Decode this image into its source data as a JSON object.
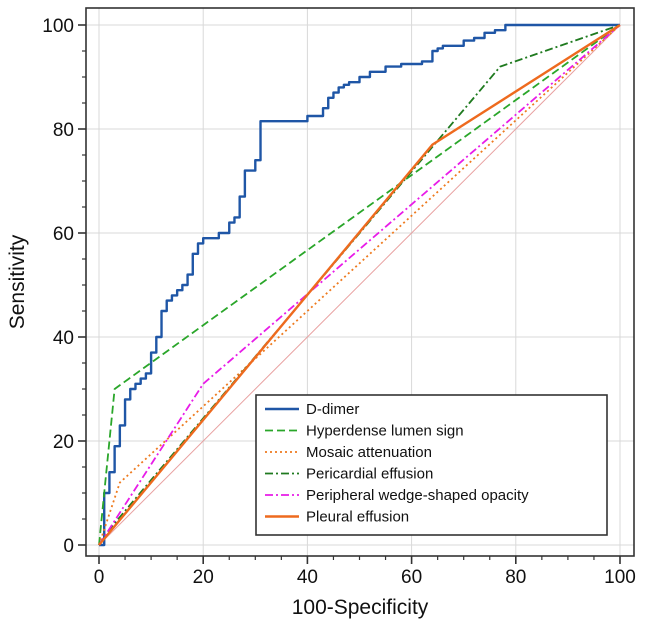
{
  "chart_data": {
    "type": "line",
    "title": "",
    "xlabel": "100-Specificity",
    "ylabel": "Sensitivity",
    "xlim": [
      0,
      100
    ],
    "ylim": [
      0,
      100
    ],
    "x_ticks": [
      0,
      20,
      40,
      60,
      80,
      100
    ],
    "y_ticks": [
      0,
      20,
      40,
      60,
      80,
      100
    ],
    "x_tick_labels": [
      "0",
      "20",
      "40",
      "60",
      "80",
      "100"
    ],
    "y_tick_labels": [
      "0",
      "20",
      "40",
      "60",
      "80",
      "100"
    ],
    "grid": true,
    "legend_position": "bottom-right",
    "reference_line": {
      "x": [
        0,
        100
      ],
      "y": [
        0,
        100
      ],
      "color": "#e8a0a0"
    },
    "series": [
      {
        "name": "D-dimer",
        "color": "#1f56a6",
        "dash": "solid",
        "x": [
          0,
          1,
          1,
          2,
          2,
          3,
          3,
          4,
          4,
          5,
          5,
          6,
          6,
          7,
          7,
          8,
          8,
          9,
          9,
          10,
          10,
          11,
          11,
          12,
          12,
          13,
          13,
          14,
          14,
          15,
          15,
          16,
          16,
          17,
          17,
          18,
          18,
          19,
          19,
          20,
          20,
          23,
          23,
          25,
          25,
          26,
          26,
          27,
          27,
          28,
          28,
          30,
          30,
          31,
          31,
          40,
          40,
          43,
          43,
          44,
          44,
          45,
          45,
          46,
          46,
          47,
          47,
          48,
          48,
          50,
          50,
          52,
          52,
          55,
          55,
          58,
          58,
          62,
          62,
          64,
          64,
          65,
          65,
          66,
          66,
          70,
          70,
          72,
          72,
          74,
          74,
          76,
          76,
          78,
          78,
          95,
          95,
          100
        ],
        "y": [
          0,
          0,
          10,
          10,
          14,
          14,
          19,
          19,
          23,
          23,
          28,
          28,
          30,
          30,
          31,
          31,
          32,
          32,
          33,
          33,
          37,
          37,
          40,
          40,
          45,
          45,
          47,
          47,
          48,
          48,
          49,
          49,
          50,
          50,
          52,
          52,
          56,
          56,
          58,
          58,
          59,
          59,
          60,
          60,
          62,
          62,
          63,
          63,
          67,
          67,
          72,
          72,
          74,
          74,
          81.5,
          81.5,
          82.5,
          82.5,
          84,
          84,
          86,
          86,
          87,
          87,
          88,
          88,
          88.5,
          88.5,
          89,
          89,
          90,
          90,
          91,
          91,
          92,
          92,
          92.5,
          92.5,
          93,
          93,
          95,
          95,
          95.5,
          95.5,
          96,
          96,
          97,
          97,
          97.5,
          97.5,
          98.5,
          98.5,
          99,
          99,
          100,
          100,
          100,
          100
        ]
      },
      {
        "name": "Hyperdense lumen sign",
        "color": "#2aa62a",
        "dash": "dashed",
        "x": [
          0,
          3,
          100
        ],
        "y": [
          0,
          30,
          100
        ]
      },
      {
        "name": "Mosaic attenuation",
        "color": "#ee7a1e",
        "dash": "dotted",
        "x": [
          0,
          4,
          100
        ],
        "y": [
          0,
          12,
          100
        ]
      },
      {
        "name": "Pericardial effusion",
        "color": "#1f7a1f",
        "dash": "dashdot",
        "x": [
          0,
          2,
          77,
          100
        ],
        "y": [
          0,
          3,
          92,
          100
        ]
      },
      {
        "name": "Peripheral wedge-shaped opacity",
        "color": "#e81ce8",
        "dash": "dashdot",
        "x": [
          0,
          20,
          100
        ],
        "y": [
          0,
          31,
          100
        ]
      },
      {
        "name": "Pleural effusion",
        "color": "#ee6a1e",
        "dash": "solid",
        "x": [
          0,
          64,
          100
        ],
        "y": [
          0,
          77,
          100
        ]
      }
    ]
  }
}
